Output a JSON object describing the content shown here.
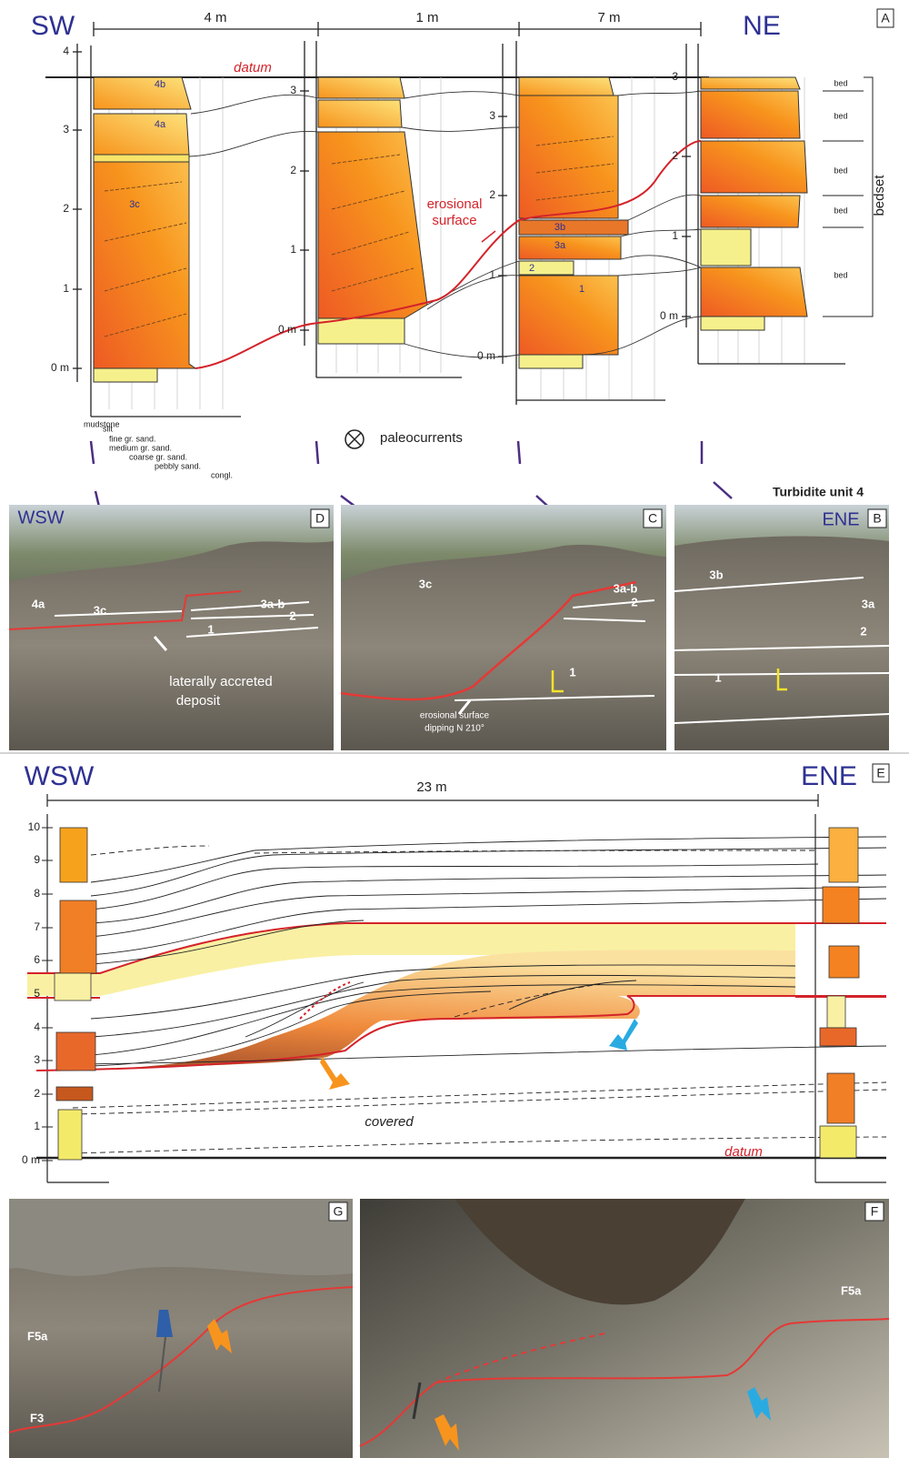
{
  "panel_a": {
    "label": "A",
    "left_direction": "SW",
    "right_direction": "NE",
    "distances": [
      "4 m",
      "1 m",
      "7 m"
    ],
    "datum": "datum",
    "columns": [
      {
        "ticks": [
          "4",
          "3",
          "2",
          "1",
          "0 m"
        ],
        "beds": [
          "4b",
          "4a",
          "3c"
        ]
      },
      {
        "ticks": [
          "3",
          "2",
          "1",
          "0 m"
        ]
      },
      {
        "ticks": [
          "3",
          "2",
          "1",
          "0 m"
        ],
        "beds": [
          "3b",
          "3a",
          "2",
          "1"
        ]
      },
      {
        "ticks": [
          "3",
          "2",
          "1",
          "0 m"
        ]
      }
    ],
    "erosional_surface": [
      "erosional",
      "surface"
    ],
    "bed_column": {
      "beds": [
        "bed",
        "bed",
        "bed",
        "bed",
        "bed"
      ],
      "bedset": "bedset"
    },
    "grain_sizes": [
      "mudstone",
      "silt",
      "fine gr. sand.",
      "medium gr. sand.",
      "coarse gr. sand.",
      "pebbly sand.",
      "congl."
    ],
    "paleocurrents": "paleocurrents"
  },
  "photo_d": {
    "label": "D",
    "direction": "WSW",
    "units": [
      "4a",
      "3c",
      "3a-b",
      "2",
      "1"
    ],
    "caption": [
      "laterally accreted",
      "deposit"
    ]
  },
  "photo_c": {
    "label": "C",
    "units": [
      "3c",
      "3a-b",
      "2",
      "1"
    ],
    "caption": [
      "erosional surface",
      "dipping N 210°"
    ]
  },
  "photo_b": {
    "title": "Turbidite unit 4",
    "label": "B",
    "direction": "ENE",
    "units": [
      "3b",
      "3a",
      "2",
      "1"
    ]
  },
  "panel_e": {
    "label": "E",
    "left_direction": "WSW",
    "right_direction": "ENE",
    "distance": "23 m",
    "ticks": [
      "10",
      "9",
      "8",
      "7",
      "6",
      "5",
      "4",
      "3",
      "2",
      "1",
      "0 m"
    ],
    "covered": "covered",
    "datum": "datum"
  },
  "photo_g": {
    "label": "G",
    "units": [
      "F5a",
      "F3"
    ]
  },
  "photo_f": {
    "label": "F",
    "units": [
      "F5a"
    ]
  }
}
